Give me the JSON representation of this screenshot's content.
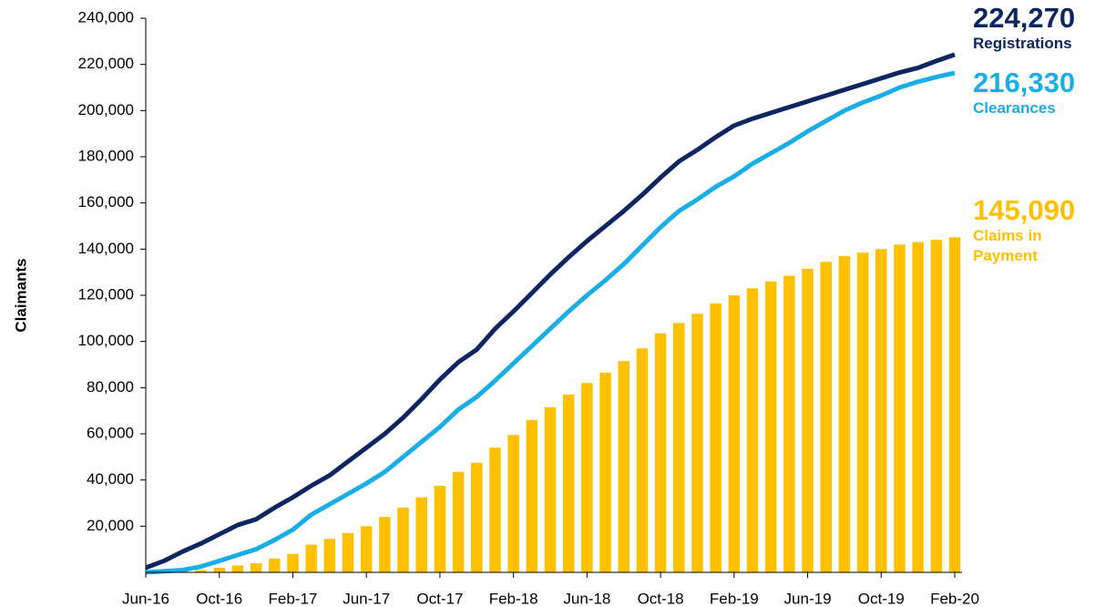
{
  "chart_data": {
    "type": "combo",
    "y_label": "Claimants",
    "categories": [
      "Jun-16",
      null,
      null,
      null,
      "Oct-16",
      null,
      null,
      null,
      "Feb-17",
      null,
      null,
      null,
      "Jun-17",
      null,
      null,
      null,
      "Oct-17",
      null,
      null,
      null,
      "Feb-18",
      null,
      null,
      null,
      "Jun-18",
      null,
      null,
      null,
      "Oct-18",
      null,
      null,
      null,
      "Feb-19",
      null,
      null,
      null,
      "Jun-19",
      null,
      null,
      null,
      "Oct-19",
      null,
      null,
      null,
      "Feb-20"
    ],
    "ylim": [
      0,
      240000
    ],
    "yticks": [
      {
        "value": 20000,
        "label": "20,000"
      },
      {
        "value": 40000,
        "label": "40,000"
      },
      {
        "value": 60000,
        "label": "60,000"
      },
      {
        "value": 80000,
        "label": "80,000"
      },
      {
        "value": 100000,
        "label": "100,000"
      },
      {
        "value": 120000,
        "label": "120,000"
      },
      {
        "value": 140000,
        "label": "140,000"
      },
      {
        "value": 160000,
        "label": "160,000"
      },
      {
        "value": 180000,
        "label": "180,000"
      },
      {
        "value": 200000,
        "label": "200,000"
      },
      {
        "value": 220000,
        "label": "220,000"
      },
      {
        "value": 240000,
        "label": "240,000"
      }
    ],
    "grid": false,
    "series": [
      {
        "name": "Claims in Payment",
        "type": "bar",
        "color": "#ffc000",
        "values": [
          0,
          0,
          500,
          1000,
          2000,
          3000,
          4000,
          6000,
          8000,
          12000,
          14500,
          17000,
          20000,
          24000,
          28000,
          32500,
          37500,
          43500,
          47500,
          54000,
          59500,
          66000,
          71500,
          77000,
          82000,
          86500,
          91500,
          97000,
          103500,
          108000,
          112000,
          116500,
          120000,
          123000,
          126000,
          128500,
          131500,
          134500,
          137000,
          138500,
          140000,
          142000,
          143000,
          144000,
          145090
        ],
        "value_labels": [
          null,
          null,
          null,
          null,
          null,
          null,
          null,
          null,
          null,
          null,
          null,
          null,
          null,
          null,
          null,
          null,
          null,
          null,
          null,
          null,
          null,
          null,
          null,
          null,
          null,
          null,
          null,
          null,
          null,
          null,
          null,
          null,
          null,
          null,
          null,
          null,
          null,
          null,
          null,
          null,
          null,
          null,
          null,
          null,
          "145,090"
        ]
      },
      {
        "name": "Registrations",
        "type": "line",
        "color": "#0d2560",
        "values": [
          2000,
          5000,
          9000,
          12500,
          16500,
          20500,
          23000,
          28000,
          32500,
          37500,
          42000,
          48000,
          54000,
          60000,
          67000,
          75000,
          83500,
          91000,
          96500,
          105500,
          113000,
          121000,
          129000,
          136500,
          143500,
          150000,
          156500,
          163500,
          171000,
          178000,
          183000,
          188500,
          193500,
          196500,
          199000,
          201500,
          204000,
          206500,
          209000,
          211500,
          214000,
          216500,
          218500,
          221500,
          224270
        ],
        "value_labels": [
          null,
          null,
          null,
          null,
          null,
          null,
          null,
          null,
          null,
          null,
          null,
          null,
          null,
          null,
          null,
          null,
          null,
          null,
          null,
          null,
          null,
          null,
          null,
          null,
          null,
          null,
          null,
          null,
          null,
          null,
          null,
          null,
          null,
          null,
          null,
          null,
          null,
          null,
          null,
          null,
          null,
          null,
          null,
          null,
          "224,270"
        ]
      },
      {
        "name": "Clearances",
        "type": "line",
        "color": "#1aaee6",
        "values": [
          0,
          500,
          1000,
          2500,
          5000,
          7500,
          10000,
          14000,
          18500,
          25000,
          29500,
          34000,
          38500,
          43500,
          50000,
          56500,
          63000,
          70500,
          76000,
          83000,
          90500,
          98000,
          105500,
          113000,
          120000,
          126500,
          133500,
          141500,
          149500,
          156500,
          161500,
          167000,
          171500,
          177000,
          181500,
          186000,
          191000,
          195500,
          200000,
          203500,
          206500,
          210000,
          212500,
          214500,
          216330
        ],
        "value_labels": [
          null,
          null,
          null,
          null,
          null,
          null,
          null,
          null,
          null,
          null,
          null,
          null,
          null,
          null,
          null,
          null,
          null,
          null,
          null,
          null,
          null,
          null,
          null,
          null,
          null,
          null,
          null,
          null,
          null,
          null,
          null,
          null,
          null,
          null,
          null,
          null,
          null,
          null,
          null,
          null,
          null,
          null,
          null,
          null,
          "216,330"
        ]
      }
    ]
  }
}
